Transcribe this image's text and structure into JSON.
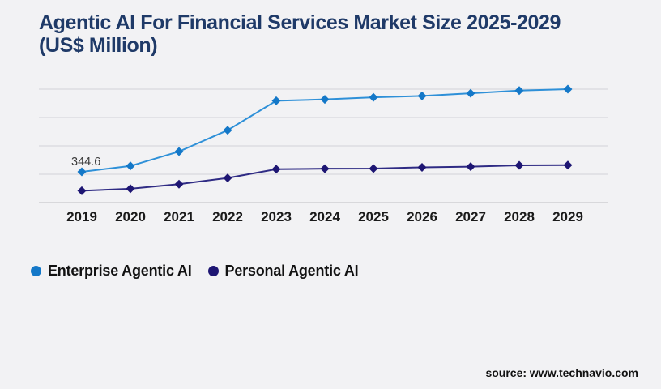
{
  "page": {
    "background": "#f2f2f4"
  },
  "header": {
    "title_line1": "Agentic AI For Financial Services Market Size 2025-2029",
    "title_line2": "(US$ Million)",
    "color": "#1f3a68"
  },
  "chart_data": {
    "type": "line",
    "title": "Agentic AI For Financial Services Market Size 2025-2029 (US$ Million)",
    "x": [
      2019,
      2020,
      2021,
      2022,
      2023,
      2024,
      2025,
      2026,
      2027,
      2028,
      2029
    ],
    "series": [
      {
        "name": "Enterprise Agentic AI",
        "line_color": "#2e90d8",
        "marker_color": "#1478c8",
        "values": [
          344.6,
          410,
          572,
          810,
          1140,
          1155,
          1178,
          1194,
          1224,
          1254,
          1270
        ]
      },
      {
        "name": "Personal Agentic AI",
        "line_color": "#2f2b84",
        "marker_color": "#1e1673",
        "values": [
          133,
          155,
          206,
          276,
          374,
          380,
          381,
          395,
          402,
          417,
          420
        ]
      }
    ],
    "point_label": {
      "series": "Enterprise Agentic AI",
      "x": 2019,
      "text": "344.6"
    },
    "xlabel": "",
    "ylabel": "",
    "ylim": [
      0,
      1270
    ],
    "grid": true,
    "gridline_count": 5,
    "grid_color": "#d2d3d7",
    "axis_line_color": "#bdbec2",
    "tick_label_color": "#1a1a1a",
    "point_label_color": "#3c3c3c",
    "y_axis_labels_visible": false,
    "legend_position": "bottom-left",
    "marker_shape": "diamond"
  },
  "legend": {
    "items": [
      {
        "label": "Enterprise Agentic AI",
        "color": "#1478c8"
      },
      {
        "label": "Personal Agentic AI",
        "color": "#1e1673"
      }
    ]
  },
  "footer": {
    "source": "source: www.technavio.com"
  }
}
